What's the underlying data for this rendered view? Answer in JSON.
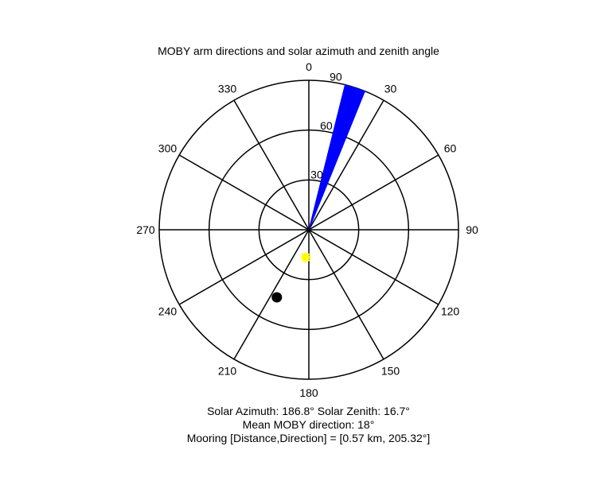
{
  "chart_data": {
    "type": "polar",
    "title": "MOBY arm directions and solar azimuth and zenith angle",
    "angle_ticks": [
      "0",
      "30",
      "60",
      "90",
      "120",
      "150",
      "180",
      "210",
      "240",
      "270",
      "300",
      "330"
    ],
    "radial_ticks": [
      "30",
      "60",
      "90"
    ],
    "rmax": 90,
    "angular_direction": "clockwise",
    "zero_location": "top",
    "grid": true,
    "series": [
      {
        "kind": "wedge",
        "color": "#0000ff",
        "theta_from_deg": 14,
        "theta_to_deg": 22,
        "r_outer": 90
      },
      {
        "kind": "point",
        "marker": "star",
        "color": "#ffff00",
        "theta_deg": 186.8,
        "r": 16.7
      },
      {
        "kind": "point",
        "marker": "filled-circle",
        "color": "#000000",
        "theta_deg": 205.32,
        "r": 45
      }
    ],
    "captions": [
      "Solar Azimuth: 186.8°   Solar Zenith: 16.7°",
      "Mean MOBY direction: 18°",
      "Mooring [Distance,Direction] = [0.57 km, 205.32°]"
    ]
  }
}
